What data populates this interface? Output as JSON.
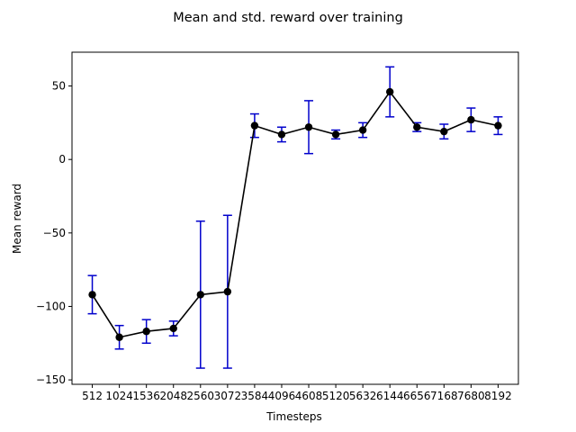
{
  "chart_data": {
    "type": "line",
    "title": "Mean and std. reward over training",
    "xlabel": "Timesteps",
    "ylabel": "Mean reward",
    "ylim": [
      -153,
      73
    ],
    "yticks": [
      -150,
      -100,
      -50,
      0,
      50
    ],
    "ytick_labels": [
      "−150",
      "−100",
      "−50",
      "0",
      "50"
    ],
    "grid": false,
    "line_color": "#000000",
    "error_color": "#0000cc",
    "x": [
      512,
      1024,
      1536,
      2048,
      2560,
      3072,
      3584,
      4096,
      4608,
      5120,
      5632,
      6144,
      6656,
      7168,
      7680,
      8192
    ],
    "x_tick_labels": [
      "512",
      "1024",
      "1536",
      "2048",
      "2560",
      "3072",
      "3584",
      "4096",
      "4608",
      "5120",
      "5632",
      "6144",
      "6656",
      "7168",
      "7680",
      "8192"
    ],
    "series": [
      {
        "values": [
          -92,
          -121,
          -117,
          -115,
          -92,
          -90,
          23,
          17,
          22,
          17,
          20,
          46,
          22,
          19,
          27,
          23
        ],
        "std": [
          13,
          8,
          8,
          5,
          50,
          52,
          8,
          5,
          18,
          3,
          5,
          17,
          3,
          5,
          8,
          6
        ]
      }
    ]
  }
}
